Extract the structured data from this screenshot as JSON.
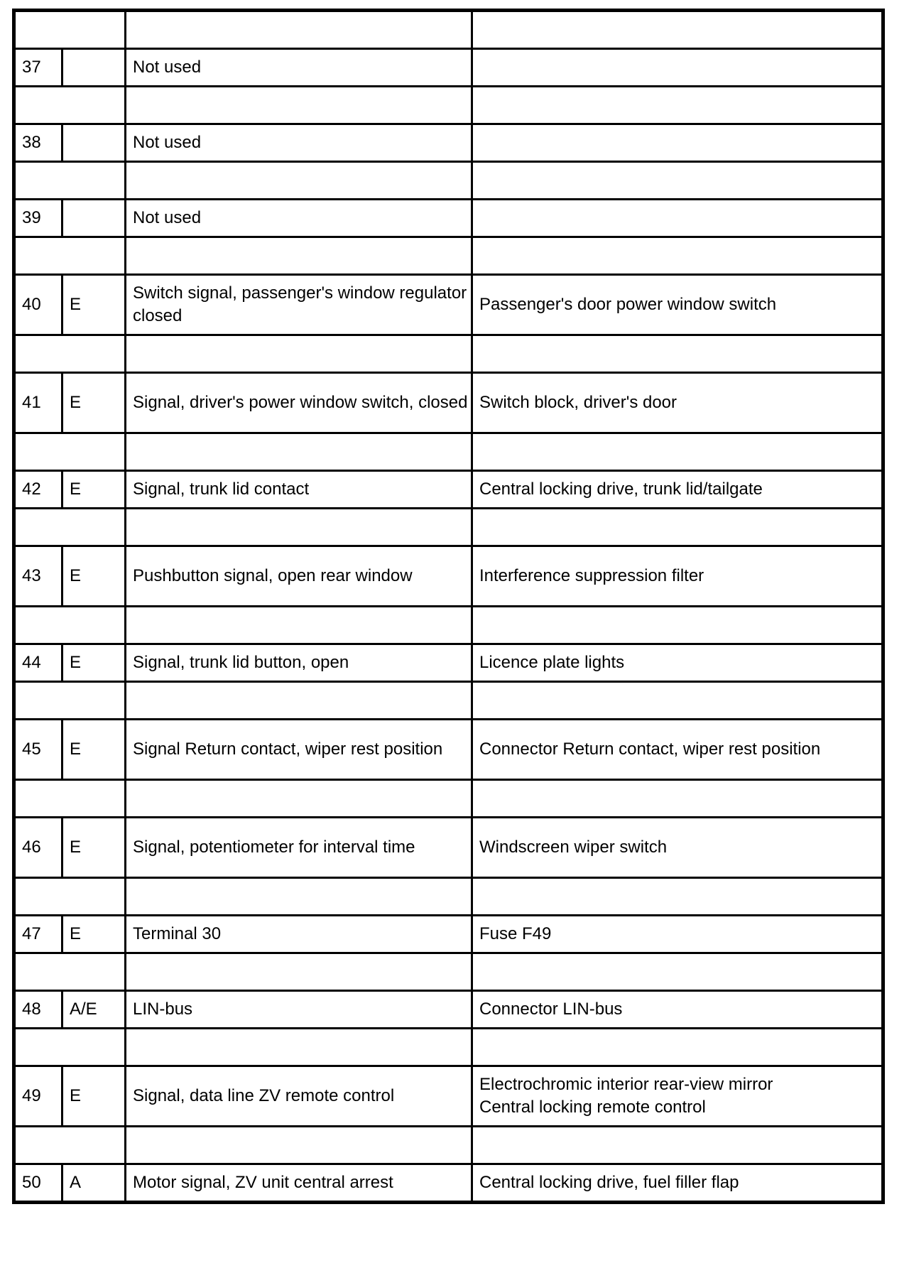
{
  "rows": [
    {
      "pin": "37",
      "type": "",
      "signal": "Not used",
      "component": ""
    },
    {
      "pin": "38",
      "type": "",
      "signal": "Not used",
      "component": ""
    },
    {
      "pin": "39",
      "type": "",
      "signal": "Not used",
      "component": ""
    },
    {
      "pin": "40",
      "type": "E",
      "signal": "Switch signal, passenger's window regulator closed",
      "component": "Passenger's door power window switch",
      "double": true
    },
    {
      "pin": "41",
      "type": "E",
      "signal": "Signal, driver's power window switch, closed",
      "component": "Switch block, driver's door",
      "double": true
    },
    {
      "pin": "42",
      "type": "E",
      "signal": "Signal, trunk lid contact",
      "component": "Central locking drive, trunk lid/tailgate"
    },
    {
      "pin": "43",
      "type": "E",
      "signal": "Pushbutton signal, open rear window",
      "component": "Interference suppression filter",
      "double": true
    },
    {
      "pin": "44",
      "type": "E",
      "signal": "Signal, trunk lid button, open",
      "component": "Licence plate lights"
    },
    {
      "pin": "45",
      "type": "E",
      "signal": "Signal Return contact, wiper rest position",
      "component": "Connector Return contact, wiper rest position",
      "double": true
    },
    {
      "pin": "46",
      "type": "E",
      "signal": "Signal, potentiometer for interval time",
      "component": "Windscreen wiper switch",
      "double": true
    },
    {
      "pin": "47",
      "type": "E",
      "signal": "Terminal 30",
      "component": "Fuse F49"
    },
    {
      "pin": "48",
      "type": "A/E",
      "signal": "LIN-bus",
      "component": "Connector LIN-bus"
    },
    {
      "pin": "49",
      "type": "E",
      "signal": "Signal, data line ZV remote control",
      "component": "Electrochromic interior rear-view mirror\nCentral locking remote control",
      "double": true
    },
    {
      "pin": "50",
      "type": "A",
      "signal": "Motor signal, ZV unit central arrest",
      "component": "Central locking drive, fuel filler flap"
    }
  ]
}
